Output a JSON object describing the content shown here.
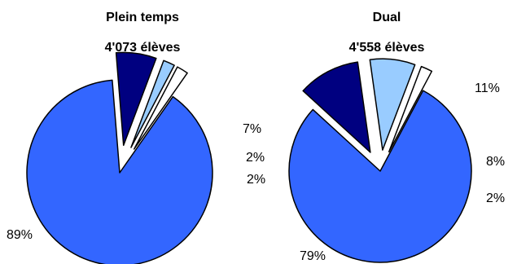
{
  "colors": {
    "main": "#3366ff",
    "navy": "#000080",
    "light_blue": "#99ccff",
    "white": "#ffffff",
    "outline": "#000000"
  },
  "chart_data": [
    {
      "type": "pie",
      "title": "Plein temps",
      "subtitle": "4'073 élèves",
      "slices": [
        {
          "label": "89%",
          "value": 89,
          "color": "#3366ff",
          "exploded": false
        },
        {
          "label": "7%",
          "value": 7,
          "color": "#000080",
          "exploded": true
        },
        {
          "label": "2%",
          "value": 2,
          "color": "#99ccff",
          "exploded": true
        },
        {
          "label": "2%",
          "value": 2,
          "color": "#ffffff",
          "exploded": true
        }
      ]
    },
    {
      "type": "pie",
      "title": "Dual",
      "subtitle": "4'558 élèves",
      "slices": [
        {
          "label": "79%",
          "value": 79,
          "color": "#3366ff",
          "exploded": false
        },
        {
          "label": "11%",
          "value": 11,
          "color": "#000080",
          "exploded": true
        },
        {
          "label": "8%",
          "value": 8,
          "color": "#99ccff",
          "exploded": true
        },
        {
          "label": "2%",
          "value": 2,
          "color": "#ffffff",
          "exploded": true
        }
      ]
    }
  ]
}
